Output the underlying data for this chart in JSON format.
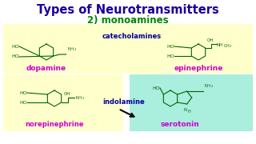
{
  "title": "Types of Neurotransmitters",
  "subtitle": "2) monoamines",
  "title_color": "#1a0099",
  "subtitle_color": "#008800",
  "bg_color": "#ffffff",
  "catecholamine_box_color": "#ffffcc",
  "indolamine_box_color": "#aaeedd",
  "label_dopamine": "dopamine",
  "label_epinephrine": "epinephrine",
  "label_norepinephrine": "norepinephrine",
  "label_serotonin": "serotonin",
  "label_catecholamines": "catecholamines",
  "label_indolamine": "indolamine",
  "name_color": "#cc00cc",
  "category_color": "#000099",
  "structure_color": "#006600",
  "arrow_color": "#000000"
}
